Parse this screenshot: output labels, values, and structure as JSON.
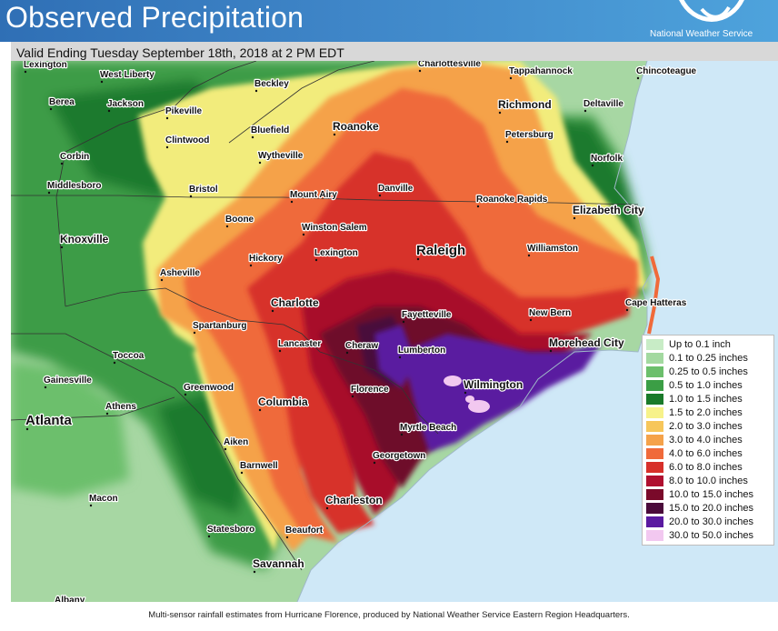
{
  "header": {
    "title": "Observed Precipitation",
    "agency": "National Weather Service",
    "valid": "Valid Ending Tuesday September 18th, 2018 at 2 PM EDT",
    "colors": {
      "banner_left": "#2f6fb5",
      "banner_right": "#4ea3dc"
    }
  },
  "map": {
    "cities": [
      {
        "name": "Lexington",
        "size": "small"
      },
      {
        "name": "West Liberty",
        "size": "small"
      },
      {
        "name": "Beckley",
        "size": "small"
      },
      {
        "name": "Charlottesville",
        "size": "small"
      },
      {
        "name": "Tappahannock",
        "size": "small"
      },
      {
        "name": "Chincoteague",
        "size": "small"
      },
      {
        "name": "Berea",
        "size": "small"
      },
      {
        "name": "Jackson",
        "size": "small"
      },
      {
        "name": "Pikeville",
        "size": "small"
      },
      {
        "name": "Richmond",
        "size": "medium"
      },
      {
        "name": "Deltaville",
        "size": "small"
      },
      {
        "name": "Roanoke",
        "size": "medium"
      },
      {
        "name": "Bluefield",
        "size": "small"
      },
      {
        "name": "Petersburg",
        "size": "small"
      },
      {
        "name": "Clintwood",
        "size": "small"
      },
      {
        "name": "Corbin",
        "size": "small"
      },
      {
        "name": "Wytheville",
        "size": "small"
      },
      {
        "name": "Norfolk",
        "size": "small"
      },
      {
        "name": "Middlesboro",
        "size": "small"
      },
      {
        "name": "Bristol",
        "size": "small"
      },
      {
        "name": "Danville",
        "size": "small"
      },
      {
        "name": "Mount Airy",
        "size": "small"
      },
      {
        "name": "Roanoke Rapids",
        "size": "small"
      },
      {
        "name": "Elizabeth City",
        "size": "medium"
      },
      {
        "name": "Boone",
        "size": "small"
      },
      {
        "name": "Winston Salem",
        "size": "small"
      },
      {
        "name": "Knoxville",
        "size": "medium"
      },
      {
        "name": "Raleigh",
        "size": "large"
      },
      {
        "name": "Lexington",
        "size": "small"
      },
      {
        "name": "Williamston",
        "size": "small"
      },
      {
        "name": "Hickory",
        "size": "small"
      },
      {
        "name": "Asheville",
        "size": "small"
      },
      {
        "name": "Charlotte",
        "size": "medium"
      },
      {
        "name": "Cape Hatteras",
        "size": "small"
      },
      {
        "name": "Fayetteville",
        "size": "small"
      },
      {
        "name": "New Bern",
        "size": "small"
      },
      {
        "name": "Spartanburg",
        "size": "small"
      },
      {
        "name": "Morehead City",
        "size": "medium"
      },
      {
        "name": "Lancaster",
        "size": "small"
      },
      {
        "name": "Cheraw",
        "size": "small"
      },
      {
        "name": "Lumberton",
        "size": "small"
      },
      {
        "name": "Toccoa",
        "size": "small"
      },
      {
        "name": "Gainesville",
        "size": "small"
      },
      {
        "name": "Wilmington",
        "size": "medium"
      },
      {
        "name": "Greenwood",
        "size": "small"
      },
      {
        "name": "Florence",
        "size": "small"
      },
      {
        "name": "Columbia",
        "size": "medium"
      },
      {
        "name": "Athens",
        "size": "small"
      },
      {
        "name": "Atlanta",
        "size": "large"
      },
      {
        "name": "Myrtle Beach",
        "size": "small"
      },
      {
        "name": "Aiken",
        "size": "small"
      },
      {
        "name": "Georgetown",
        "size": "small"
      },
      {
        "name": "Barnwell",
        "size": "small"
      },
      {
        "name": "Charleston",
        "size": "medium"
      },
      {
        "name": "Macon",
        "size": "small"
      },
      {
        "name": "Statesboro",
        "size": "small"
      },
      {
        "name": "Beaufort",
        "size": "small"
      },
      {
        "name": "Savannah",
        "size": "medium"
      },
      {
        "name": "Albany",
        "size": "small"
      }
    ]
  },
  "legend": {
    "items": [
      {
        "label": "Up to 0.1 inch",
        "color": "#c8ecc6"
      },
      {
        "label": "0.1 to 0.25 inches",
        "color": "#a3d9a0"
      },
      {
        "label": "0.25 to 0.5 inches",
        "color": "#6cbf6c"
      },
      {
        "label": "0.5 to 1.0 inches",
        "color": "#3b9e45"
      },
      {
        "label": "1.0 to 1.5 inches",
        "color": "#1a7a2a"
      },
      {
        "label": "1.5 to 2.0 inches",
        "color": "#f7f28a"
      },
      {
        "label": "2.0 to 3.0 inches",
        "color": "#f7c65a"
      },
      {
        "label": "3.0 to 4.0 inches",
        "color": "#f5a24a"
      },
      {
        "label": "4.0 to 6.0 inches",
        "color": "#f06a3a"
      },
      {
        "label": "6.0 to 8.0 inches",
        "color": "#d7302a"
      },
      {
        "label": "8.0 to 10.0 inches",
        "color": "#b01030"
      },
      {
        "label": "10.0 to 15.0 inches",
        "color": "#7a0a2a"
      },
      {
        "label": "15.0 to 20.0 inches",
        "color": "#4a0a3a"
      },
      {
        "label": "20.0 to 30.0 inches",
        "color": "#5a1aa0"
      },
      {
        "label": "30.0 to 50.0 inches",
        "color": "#f2c8f0"
      }
    ]
  },
  "caption": "Multi-sensor rainfall estimates from Hurricane Florence, produced by National Weather Service Eastern Region Headquarters."
}
